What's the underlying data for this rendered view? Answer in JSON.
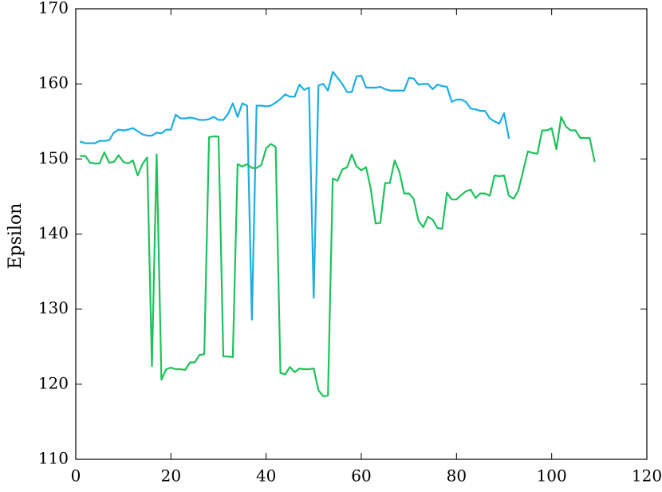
{
  "chart_data": {
    "type": "line",
    "title": "",
    "xlabel": "",
    "ylabel": "Epsilon",
    "xlim": [
      0,
      120
    ],
    "ylim": [
      110,
      170
    ],
    "x_ticks": [
      0,
      20,
      40,
      60,
      80,
      100,
      120
    ],
    "y_ticks": [
      110,
      120,
      130,
      140,
      150,
      160,
      170
    ],
    "grid": false,
    "legend": "none",
    "series": [
      {
        "color": "#1aaee5",
        "x": [
          1,
          2,
          3,
          4,
          5,
          6,
          7,
          8,
          9,
          10,
          11,
          12,
          13,
          14,
          15,
          16,
          17,
          18,
          19,
          20,
          21,
          22,
          23,
          24,
          25,
          26,
          27,
          28,
          29,
          30,
          31,
          32,
          33,
          34,
          35,
          36,
          37,
          38,
          39,
          40,
          41,
          42,
          43,
          44,
          45,
          46,
          47,
          48,
          49,
          50,
          51,
          52,
          53,
          54,
          55,
          56,
          57,
          58,
          59,
          60,
          61,
          62,
          63,
          64,
          65,
          66,
          67,
          68,
          69,
          70,
          71,
          72,
          73,
          74,
          75,
          76,
          77,
          78,
          79,
          80,
          81,
          82,
          83,
          84,
          85,
          86,
          87,
          88,
          89,
          90,
          91
        ],
        "y": [
          152.3,
          152.1,
          152.1,
          152.1,
          152.4,
          152.4,
          152.5,
          153.5,
          153.9,
          153.8,
          153.9,
          154.1,
          153.7,
          153.3,
          153.1,
          153.1,
          153.5,
          153.4,
          153.9,
          153.9,
          155.9,
          155.4,
          155.4,
          155.5,
          155.4,
          155.2,
          155.2,
          155.3,
          155.6,
          155.2,
          155.2,
          156.0,
          157.4,
          155.6,
          157.4,
          157.1,
          128.6,
          157.1,
          157.1,
          157.0,
          157.1,
          157.5,
          158.0,
          158.6,
          158.3,
          158.3,
          159.9,
          159.2,
          159.5,
          131.5,
          159.8,
          160.0,
          159.1,
          161.6,
          160.8,
          160.0,
          158.9,
          158.9,
          161.0,
          161.1,
          159.5,
          159.5,
          159.5,
          159.6,
          159.3,
          159.1,
          159.1,
          159.1,
          159.1,
          160.8,
          160.7,
          159.9,
          160.0,
          160.0,
          159.3,
          159.9,
          159.7,
          159.6,
          157.6,
          157.9,
          157.9,
          157.6,
          156.7,
          156.6,
          156.4,
          156.4,
          155.4,
          155.0,
          154.7,
          156.1,
          152.8
        ]
      },
      {
        "color": "#1dc25a",
        "x": [
          1,
          2,
          3,
          4,
          5,
          6,
          7,
          8,
          9,
          10,
          11,
          12,
          13,
          14,
          15,
          16,
          17,
          18,
          19,
          20,
          21,
          22,
          23,
          24,
          25,
          26,
          27,
          28,
          29,
          30,
          31,
          32,
          33,
          34,
          35,
          36,
          37,
          38,
          39,
          40,
          41,
          42,
          43,
          44,
          45,
          46,
          47,
          48,
          49,
          50,
          51,
          52,
          53,
          54,
          55,
          56,
          57,
          58,
          59,
          60,
          61,
          62,
          63,
          64,
          65,
          66,
          67,
          68,
          69,
          70,
          71,
          72,
          73,
          74,
          75,
          76,
          77,
          78,
          79,
          80,
          81,
          82,
          83,
          84,
          85,
          86,
          87,
          88,
          89,
          90,
          91,
          92,
          93,
          94,
          95,
          96,
          97,
          98,
          99,
          100,
          101,
          102,
          103,
          104,
          105,
          106,
          107,
          108,
          109
        ],
        "y": [
          150.4,
          150.4,
          149.5,
          149.4,
          149.4,
          150.9,
          149.5,
          149.6,
          150.5,
          149.6,
          149.4,
          149.8,
          147.8,
          149.3,
          150.2,
          122.4,
          150.6,
          120.6,
          122.0,
          122.2,
          122.0,
          122.0,
          121.9,
          122.9,
          122.9,
          123.9,
          124.0,
          152.9,
          153.0,
          153.0,
          123.7,
          123.7,
          123.6,
          149.3,
          149.0,
          149.3,
          148.8,
          148.8,
          149.2,
          151.4,
          152.0,
          151.6,
          121.5,
          121.3,
          122.3,
          121.6,
          122.1,
          122.0,
          122.0,
          122.1,
          119.2,
          118.4,
          118.5,
          147.4,
          147.1,
          148.6,
          148.9,
          150.6,
          149.0,
          148.5,
          148.9,
          146.0,
          141.4,
          141.5,
          146.8,
          146.8,
          149.8,
          148.3,
          145.4,
          145.4,
          144.7,
          141.8,
          140.9,
          142.3,
          141.9,
          140.8,
          140.7,
          145.5,
          144.6,
          144.6,
          145.2,
          145.7,
          145.9,
          144.8,
          145.4,
          145.4,
          145.1,
          147.8,
          147.7,
          147.8,
          145.1,
          144.7,
          145.8,
          148.4,
          151.0,
          150.8,
          150.7,
          153.8,
          153.8,
          154.1,
          151.3,
          155.6,
          154.3,
          153.8,
          153.8,
          152.8,
          152.8,
          152.8,
          149.7
        ]
      }
    ]
  }
}
